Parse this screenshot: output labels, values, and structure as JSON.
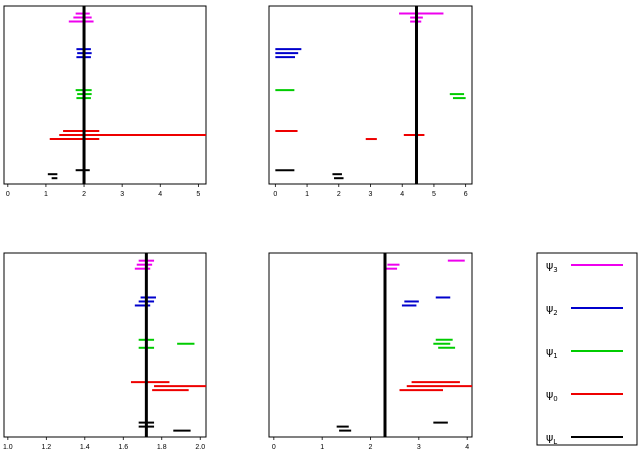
{
  "colors": {
    "psi3": "#ee00ee",
    "psi2": "#0000cc",
    "psi1": "#00cc00",
    "psi0": "#ee0000",
    "psiL": "#000000"
  },
  "legend": [
    {
      "base": "ψ",
      "sub": "3",
      "series": "psi3"
    },
    {
      "base": "ψ",
      "sub": "2",
      "series": "psi2"
    },
    {
      "base": "ψ",
      "sub": "1",
      "series": "psi1"
    },
    {
      "base": "ψ",
      "sub": "0",
      "series": "psi0"
    },
    {
      "base": "ψ",
      "sub": "L",
      "series": "psiL"
    }
  ],
  "chart_data": [
    {
      "type": "interval",
      "xlim": [
        -0.1,
        5.2
      ],
      "xticks": [
        "0",
        "1",
        "2",
        "3",
        "4",
        "5"
      ],
      "xtick_values": [
        0,
        1,
        2,
        3,
        4,
        5
      ],
      "reference_line": 2.0,
      "series": [
        {
          "key": "psi3",
          "intervals": [
            [
              1.78,
              2.15
            ],
            [
              1.72,
              2.2
            ],
            [
              1.6,
              2.25
            ]
          ]
        },
        {
          "key": "psi2",
          "intervals": [
            [
              1.8,
              2.18
            ],
            [
              1.82,
              2.2
            ],
            [
              1.8,
              2.18
            ]
          ]
        },
        {
          "key": "psi1",
          "intervals": [
            [
              1.78,
              2.2
            ],
            [
              1.82,
              2.2
            ],
            [
              1.8,
              2.18
            ]
          ]
        },
        {
          "key": "psi0",
          "intervals": [
            [
              1.45,
              2.4
            ],
            [
              1.35,
              5.2
            ],
            [
              1.1,
              2.4
            ]
          ]
        },
        {
          "key": "psiL",
          "intervals": [
            [
              1.78,
              2.15
            ],
            [
              1.05,
              1.3
            ],
            [
              1.15,
              1.3
            ]
          ]
        }
      ]
    },
    {
      "type": "interval",
      "xlim": [
        -0.2,
        6.2
      ],
      "xticks": [
        "0",
        "1",
        "2",
        "3",
        "4",
        "5",
        "6"
      ],
      "xtick_values": [
        0,
        1,
        2,
        3,
        4,
        5,
        6
      ],
      "reference_line": 4.45,
      "series": [
        {
          "key": "psi3",
          "intervals": [
            [
              3.9,
              5.3
            ],
            [
              4.25,
              4.65
            ],
            [
              4.25,
              4.6
            ]
          ]
        },
        {
          "key": "psi2",
          "intervals": [
            [
              0.0,
              0.82
            ],
            [
              0.0,
              0.72
            ],
            [
              0.0,
              0.62
            ]
          ]
        },
        {
          "key": "psi1",
          "intervals": [
            [
              0.0,
              0.6
            ],
            [
              5.5,
              5.95
            ],
            [
              5.6,
              6.0
            ]
          ]
        },
        {
          "key": "psi0",
          "intervals": [
            [
              0.0,
              0.7
            ],
            [
              4.05,
              4.7
            ],
            [
              2.85,
              3.2
            ]
          ]
        },
        {
          "key": "psiL",
          "intervals": [
            [
              0.0,
              0.6
            ],
            [
              1.8,
              2.1
            ],
            [
              1.85,
              2.15
            ]
          ]
        }
      ]
    },
    {
      "type": "interval",
      "xlim": [
        0.98,
        2.03
      ],
      "xticks": [
        "1.0",
        "1.2",
        "1.4",
        "1.6",
        "1.8",
        "2.0"
      ],
      "xtick_values": [
        1.0,
        1.2,
        1.4,
        1.6,
        1.8,
        2.0
      ],
      "reference_line": 1.72,
      "series": [
        {
          "key": "psi3",
          "intervals": [
            [
              1.68,
              1.76
            ],
            [
              1.67,
              1.75
            ],
            [
              1.66,
              1.74
            ]
          ]
        },
        {
          "key": "psi2",
          "intervals": [
            [
              1.69,
              1.77
            ],
            [
              1.68,
              1.76
            ],
            [
              1.66,
              1.74
            ]
          ]
        },
        {
          "key": "psi1",
          "intervals": [
            [
              1.68,
              1.76
            ],
            [
              1.88,
              1.97
            ],
            [
              1.68,
              1.76
            ]
          ]
        },
        {
          "key": "psi0",
          "intervals": [
            [
              1.64,
              1.84
            ],
            [
              1.76,
              2.03
            ],
            [
              1.75,
              1.94
            ]
          ]
        },
        {
          "key": "psiL",
          "intervals": [
            [
              1.68,
              1.76
            ],
            [
              1.68,
              1.76
            ],
            [
              1.86,
              1.95
            ]
          ]
        }
      ]
    },
    {
      "type": "interval",
      "xlim": [
        -0.1,
        4.1
      ],
      "xticks": [
        "0",
        "1",
        "2",
        "3",
        "4"
      ],
      "xtick_values": [
        0,
        1,
        2,
        3,
        4
      ],
      "reference_line": 2.3,
      "series": [
        {
          "key": "psi3",
          "intervals": [
            [
              3.6,
              3.95
            ],
            [
              2.35,
              2.6
            ],
            [
              2.3,
              2.55
            ]
          ]
        },
        {
          "key": "psi2",
          "intervals": [
            [
              3.35,
              3.65
            ],
            [
              2.7,
              3.0
            ],
            [
              2.65,
              2.95
            ]
          ]
        },
        {
          "key": "psi1",
          "intervals": [
            [
              3.35,
              3.7
            ],
            [
              3.3,
              3.65
            ],
            [
              3.4,
              3.75
            ]
          ]
        },
        {
          "key": "psi0",
          "intervals": [
            [
              2.85,
              3.85
            ],
            [
              2.75,
              4.1
            ],
            [
              2.6,
              3.5
            ]
          ]
        },
        {
          "key": "psiL",
          "intervals": [
            [
              3.3,
              3.6
            ],
            [
              1.3,
              1.55
            ],
            [
              1.35,
              1.6
            ]
          ]
        }
      ]
    }
  ]
}
